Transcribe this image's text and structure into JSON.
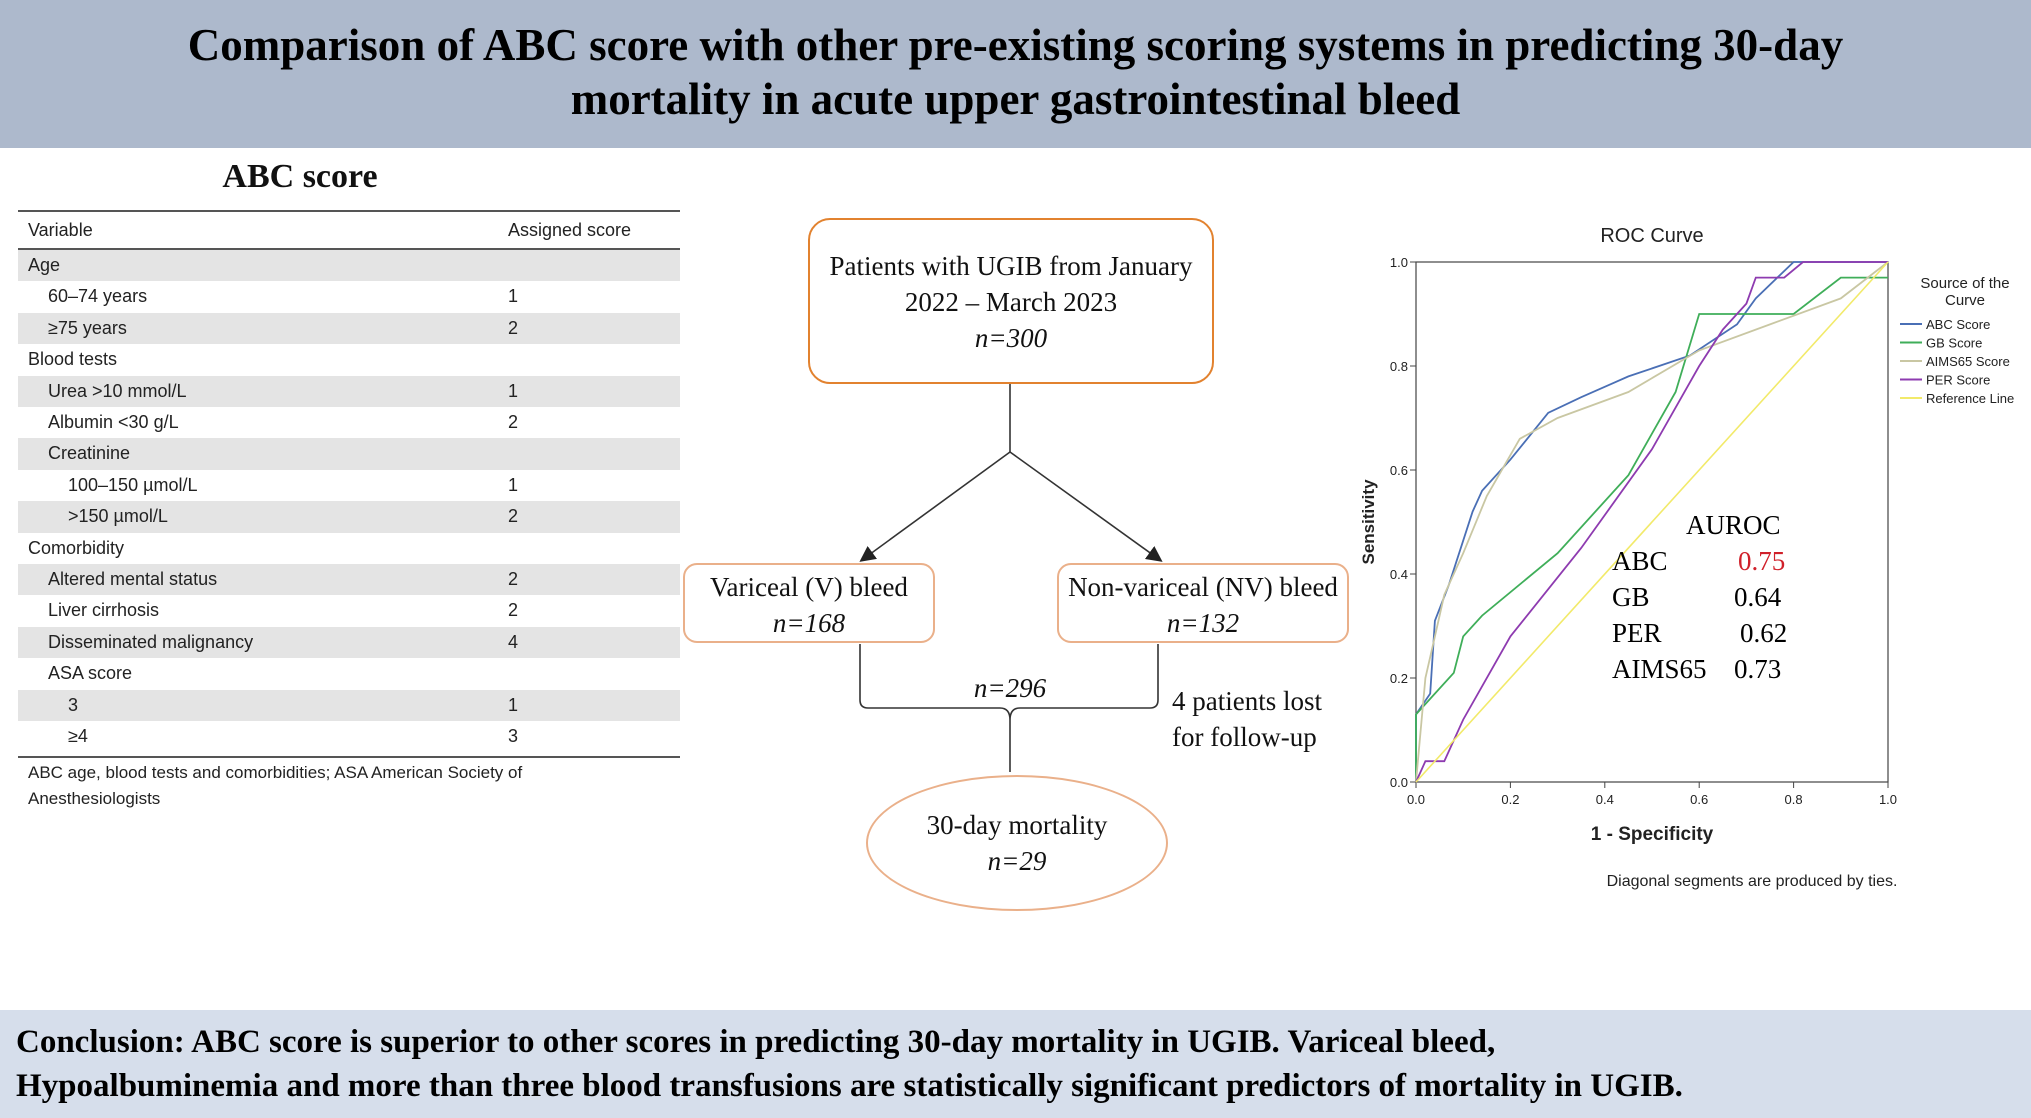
{
  "header": {
    "title_line1": "Comparison of  ABC score with other pre-existing scoring systems in predicting 30-day",
    "title_line2": "mortality in acute upper gastrointestinal bleed"
  },
  "abc_table": {
    "title": "ABC score",
    "col_variable": "Variable",
    "col_score": "Assigned score",
    "rows": [
      {
        "label": "Age",
        "score": "",
        "indent": 0
      },
      {
        "label": "60–74 years",
        "score": "1",
        "indent": 1
      },
      {
        "label": "≥75 years",
        "score": "2",
        "indent": 1
      },
      {
        "label": "Blood tests",
        "score": "",
        "indent": 0
      },
      {
        "label": "Urea >10 mmol/L",
        "score": "1",
        "indent": 1
      },
      {
        "label": "Albumin <30 g/L",
        "score": "2",
        "indent": 1
      },
      {
        "label": "Creatinine",
        "score": "",
        "indent": 1
      },
      {
        "label": "100–150 µmol/L",
        "score": "1",
        "indent": 2
      },
      {
        "label": ">150 µmol/L",
        "score": "2",
        "indent": 2
      },
      {
        "label": "Comorbidity",
        "score": "",
        "indent": 0
      },
      {
        "label": "Altered mental status",
        "score": "2",
        "indent": 1
      },
      {
        "label": "Liver cirrhosis",
        "score": "2",
        "indent": 1
      },
      {
        "label": "Disseminated malignancy",
        "score": "4",
        "indent": 1
      },
      {
        "label": "ASA score",
        "score": "",
        "indent": 1
      },
      {
        "label": "3",
        "score": "1",
        "indent": 2
      },
      {
        "label": "≥4",
        "score": "3",
        "indent": 2
      }
    ],
    "note_line1": "ABC age, blood tests and comorbidities; ASA American Society of",
    "note_line2": "Anesthesiologists"
  },
  "flowchart": {
    "root_line1": "Patients with UGIB from January",
    "root_line2": "2022 – March 2023",
    "root_n": "n=300",
    "variceal_label": "Variceal (V)  bleed",
    "variceal_n": "n=168",
    "nonvariceal_label": "Non-variceal (NV) bleed",
    "nonvariceal_n": "n=132",
    "merged_n": "n=296",
    "lost_line1": "4 patients lost",
    "lost_line2": "for follow-up",
    "outcome_label": "30-day mortality",
    "outcome_n": "n=29"
  },
  "chart_data": {
    "type": "line",
    "title": "ROC Curve",
    "xlabel": "1 - Specificity",
    "ylabel": "Sensitivity",
    "xlim": [
      0,
      1
    ],
    "ylim": [
      0,
      1
    ],
    "xticks": [
      "0.0",
      "0.2",
      "0.4",
      "0.6",
      "0.8",
      "1.0"
    ],
    "yticks": [
      "0.0",
      "0.2",
      "0.4",
      "0.6",
      "0.8",
      "1.0"
    ],
    "legend_title": "Source of the Curve",
    "legend_position": "right",
    "footnote": "Diagonal segments are produced by ties.",
    "series": [
      {
        "name": "ABC Score",
        "color": "#4a6fb5",
        "points": [
          [
            0,
            0
          ],
          [
            0,
            0.13
          ],
          [
            0.03,
            0.17
          ],
          [
            0.04,
            0.31
          ],
          [
            0.07,
            0.38
          ],
          [
            0.12,
            0.52
          ],
          [
            0.14,
            0.56
          ],
          [
            0.2,
            0.62
          ],
          [
            0.28,
            0.71
          ],
          [
            0.35,
            0.74
          ],
          [
            0.45,
            0.78
          ],
          [
            0.58,
            0.82
          ],
          [
            0.68,
            0.88
          ],
          [
            0.72,
            0.93
          ],
          [
            0.8,
            1.0
          ],
          [
            1.0,
            1.0
          ]
        ]
      },
      {
        "name": "GB Score",
        "color": "#3fae59",
        "points": [
          [
            0,
            0
          ],
          [
            0,
            0.13
          ],
          [
            0.08,
            0.21
          ],
          [
            0.1,
            0.28
          ],
          [
            0.14,
            0.32
          ],
          [
            0.3,
            0.44
          ],
          [
            0.45,
            0.59
          ],
          [
            0.55,
            0.75
          ],
          [
            0.6,
            0.9
          ],
          [
            0.75,
            0.9
          ],
          [
            0.8,
            0.9
          ],
          [
            0.9,
            0.97
          ],
          [
            1.0,
            0.97
          ]
        ]
      },
      {
        "name": "AIMS65 Score",
        "color": "#c9c7a3",
        "points": [
          [
            0,
            0
          ],
          [
            0.02,
            0.2
          ],
          [
            0.04,
            0.28
          ],
          [
            0.06,
            0.36
          ],
          [
            0.1,
            0.44
          ],
          [
            0.15,
            0.55
          ],
          [
            0.22,
            0.66
          ],
          [
            0.3,
            0.7
          ],
          [
            0.45,
            0.75
          ],
          [
            0.6,
            0.83
          ],
          [
            0.75,
            0.88
          ],
          [
            0.9,
            0.93
          ],
          [
            1.0,
            1.0
          ]
        ]
      },
      {
        "name": "PER Score",
        "color": "#8e3bb0",
        "points": [
          [
            0,
            0
          ],
          [
            0.02,
            0.04
          ],
          [
            0.06,
            0.04
          ],
          [
            0.1,
            0.12
          ],
          [
            0.2,
            0.28
          ],
          [
            0.35,
            0.45
          ],
          [
            0.5,
            0.64
          ],
          [
            0.6,
            0.8
          ],
          [
            0.65,
            0.87
          ],
          [
            0.7,
            0.92
          ],
          [
            0.72,
            0.97
          ],
          [
            0.78,
            0.97
          ],
          [
            0.82,
            1.0
          ],
          [
            1.0,
            1.0
          ]
        ]
      },
      {
        "name": "Reference Line",
        "color": "#f2ea6a",
        "points": [
          [
            0,
            0
          ],
          [
            1,
            1
          ]
        ]
      }
    ]
  },
  "auroc": {
    "heading": "AUROC",
    "rows": [
      {
        "name": "ABC",
        "value": "0.75",
        "highlight": true
      },
      {
        "name": "GB",
        "value": "0.64",
        "highlight": false
      },
      {
        "name": "PER",
        "value": "0.62",
        "highlight": false
      },
      {
        "name": "AIMS65",
        "value": "0.73",
        "highlight": false
      }
    ]
  },
  "colors": {
    "header_bg": "#adb9cc",
    "footer_bg": "#d6deeb",
    "flow_border": "#e2822f",
    "auroc_highlight": "#d0202a"
  },
  "footer": {
    "line1": "Conclusion: ABC score is superior to other scores in predicting 30-day mortality in UGIB. Variceal bleed,",
    "line2": "Hypoalbuminemia and more than three blood transfusions are statistically significant predictors of mortality in UGIB."
  }
}
